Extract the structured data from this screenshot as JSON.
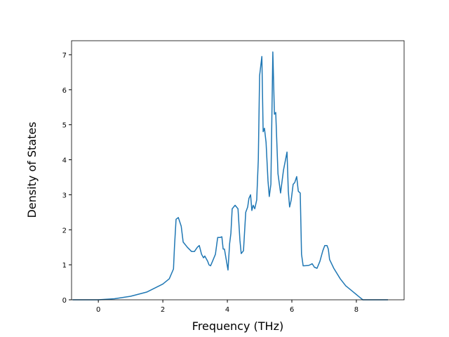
{
  "chart_data": {
    "type": "line",
    "xlabel": "Frequency (THz)",
    "ylabel": "Density of States",
    "xlim": [
      -0.83,
      9.48
    ],
    "ylim": [
      0,
      7.4
    ],
    "xticks": [
      0,
      2,
      4,
      6,
      8
    ],
    "yticks": [
      0,
      1,
      2,
      3,
      4,
      5,
      6,
      7
    ],
    "series": [
      {
        "color": "#1f77b4",
        "x": [
          -0.8,
          0,
          0.5,
          1.0,
          1.5,
          2.0,
          2.2,
          2.33,
          2.36,
          2.41,
          2.48,
          2.57,
          2.63,
          2.76,
          2.89,
          2.98,
          3.07,
          3.13,
          3.2,
          3.26,
          3.3,
          3.39,
          3.43,
          3.48,
          3.54,
          3.63,
          3.7,
          3.78,
          3.83,
          3.87,
          3.91,
          4.02,
          4.07,
          4.11,
          4.15,
          4.24,
          4.33,
          4.39,
          4.43,
          4.5,
          4.57,
          4.63,
          4.67,
          4.72,
          4.76,
          4.8,
          4.85,
          4.91,
          4.96,
          5.0,
          5.07,
          5.11,
          5.15,
          5.2,
          5.26,
          5.3,
          5.35,
          5.41,
          5.46,
          5.5,
          5.57,
          5.65,
          5.74,
          5.85,
          5.89,
          5.93,
          5.98,
          6.04,
          6.09,
          6.15,
          6.2,
          6.26,
          6.3,
          6.35,
          6.52,
          6.63,
          6.7,
          6.78,
          6.87,
          6.96,
          7.02,
          7.09,
          7.13,
          7.17,
          7.3,
          7.5,
          7.67,
          7.87,
          8.04,
          8.2,
          8.98
        ],
        "values": [
          0,
          0,
          0.03,
          0.1,
          0.22,
          0.45,
          0.6,
          0.88,
          1.5,
          2.3,
          2.35,
          2.1,
          1.65,
          1.5,
          1.38,
          1.38,
          1.5,
          1.55,
          1.3,
          1.2,
          1.25,
          1.1,
          1.0,
          0.97,
          1.1,
          1.3,
          1.78,
          1.78,
          1.8,
          1.45,
          1.45,
          0.85,
          1.6,
          1.9,
          2.6,
          2.7,
          2.6,
          1.7,
          1.32,
          1.4,
          2.5,
          2.65,
          2.9,
          3.0,
          2.55,
          2.7,
          2.6,
          2.85,
          4.0,
          6.4,
          6.95,
          4.8,
          4.9,
          4.5,
          3.4,
          2.95,
          3.3,
          7.08,
          5.3,
          5.35,
          3.6,
          3.05,
          3.7,
          4.22,
          3.1,
          2.65,
          2.85,
          3.3,
          3.35,
          3.52,
          3.1,
          3.05,
          1.3,
          0.97,
          0.98,
          1.03,
          0.93,
          0.9,
          1.1,
          1.4,
          1.55,
          1.55,
          1.45,
          1.15,
          0.9,
          0.6,
          0.4,
          0.25,
          0.12,
          0,
          0
        ]
      }
    ]
  }
}
